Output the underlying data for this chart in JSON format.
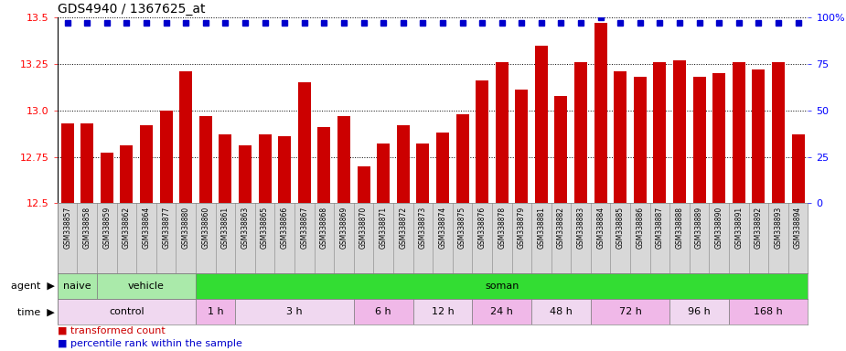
{
  "title": "GDS4940 / 1367625_at",
  "categories": [
    "GSM338857",
    "GSM338858",
    "GSM338859",
    "GSM338862",
    "GSM338864",
    "GSM338877",
    "GSM338880",
    "GSM338860",
    "GSM338861",
    "GSM338863",
    "GSM338865",
    "GSM338866",
    "GSM338867",
    "GSM338868",
    "GSM338869",
    "GSM338870",
    "GSM338871",
    "GSM338872",
    "GSM338873",
    "GSM338874",
    "GSM338875",
    "GSM338876",
    "GSM338878",
    "GSM338879",
    "GSM338881",
    "GSM338882",
    "GSM338883",
    "GSM338884",
    "GSM338885",
    "GSM338886",
    "GSM338887",
    "GSM338888",
    "GSM338889",
    "GSM338890",
    "GSM338891",
    "GSM338892",
    "GSM338893",
    "GSM338894"
  ],
  "bar_values": [
    12.93,
    12.93,
    12.77,
    12.81,
    12.92,
    13.0,
    13.21,
    12.97,
    12.87,
    12.81,
    12.87,
    12.86,
    13.15,
    12.91,
    12.97,
    12.7,
    12.82,
    12.92,
    12.82,
    12.88,
    12.98,
    13.16,
    13.26,
    13.11,
    13.35,
    13.08,
    13.26,
    13.47,
    13.21,
    13.18,
    13.26,
    13.27,
    13.18,
    13.2,
    13.26,
    13.22,
    13.26,
    12.87
  ],
  "percentile_values": [
    97,
    97,
    97,
    97,
    97,
    97,
    97,
    97,
    97,
    97,
    97,
    97,
    97,
    97,
    97,
    97,
    97,
    97,
    97,
    97,
    97,
    97,
    97,
    97,
    97,
    97,
    97,
    100,
    97,
    97,
    97,
    97,
    97,
    97,
    97,
    97,
    97,
    97
  ],
  "bar_color": "#cc0000",
  "percentile_color": "#0000cc",
  "ylim_left": [
    12.5,
    13.5
  ],
  "ylim_right": [
    0,
    100
  ],
  "yticks_left": [
    12.5,
    12.75,
    13.0,
    13.25,
    13.5
  ],
  "yticks_right": [
    0,
    25,
    50,
    75,
    100
  ],
  "agent_groups": [
    {
      "label": "naive",
      "start": 0,
      "end": 2,
      "color": "#aaeaaa"
    },
    {
      "label": "vehicle",
      "start": 2,
      "end": 7,
      "color": "#aaeaaa"
    },
    {
      "label": "soman",
      "start": 7,
      "end": 38,
      "color": "#33dd33"
    }
  ],
  "time_groups": [
    {
      "label": "control",
      "start": 0,
      "end": 7,
      "color": "#f0d8f0"
    },
    {
      "label": "1 h",
      "start": 7,
      "end": 9,
      "color": "#f0b8e8"
    },
    {
      "label": "3 h",
      "start": 9,
      "end": 15,
      "color": "#f0d8f0"
    },
    {
      "label": "6 h",
      "start": 15,
      "end": 18,
      "color": "#f0b8e8"
    },
    {
      "label": "12 h",
      "start": 18,
      "end": 21,
      "color": "#f0d8f0"
    },
    {
      "label": "24 h",
      "start": 21,
      "end": 24,
      "color": "#f0b8e8"
    },
    {
      "label": "48 h",
      "start": 24,
      "end": 27,
      "color": "#f0d8f0"
    },
    {
      "label": "72 h",
      "start": 27,
      "end": 31,
      "color": "#f0b8e8"
    },
    {
      "label": "96 h",
      "start": 31,
      "end": 34,
      "color": "#f0d8f0"
    },
    {
      "label": "168 h",
      "start": 34,
      "end": 38,
      "color": "#f0b8e8"
    }
  ],
  "xlabel_bg": "#d8d8d8",
  "background_color": "#ffffff"
}
